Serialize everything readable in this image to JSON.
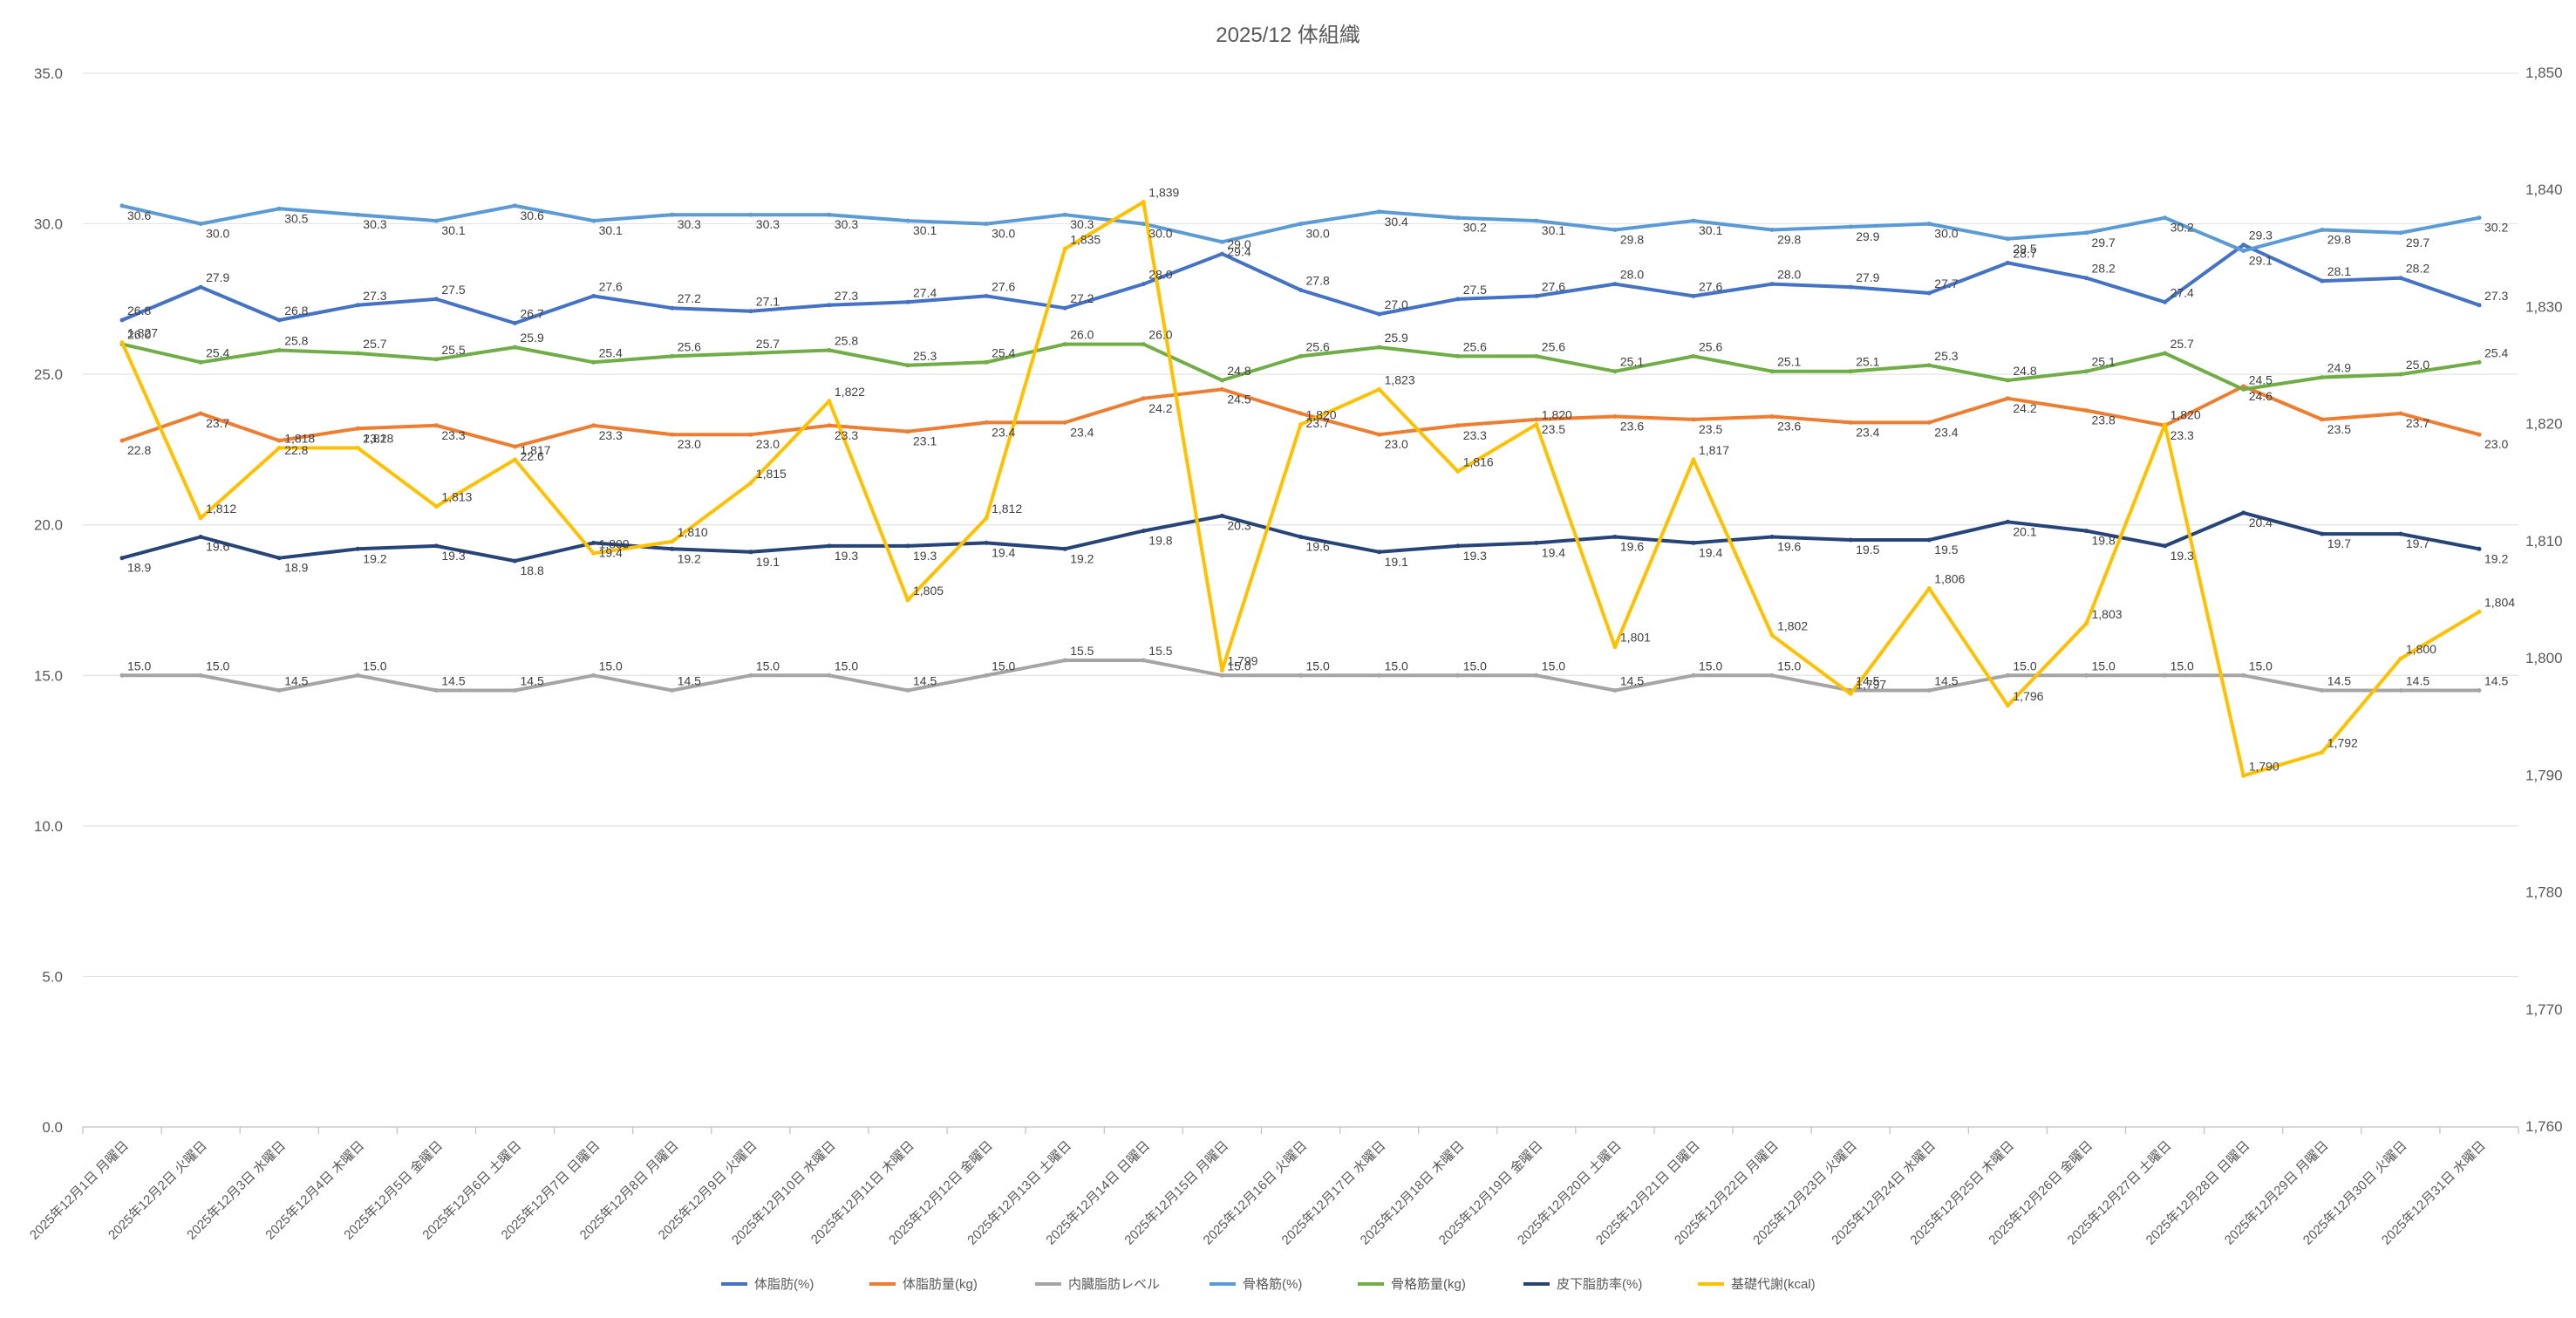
{
  "chart_data": {
    "type": "line",
    "title": "2025/12 体組織",
    "categories": [
      "2025年12月1日 月曜日",
      "2025年12月2日 火曜日",
      "2025年12月3日 水曜日",
      "2025年12月4日 木曜日",
      "2025年12月5日 金曜日",
      "2025年12月6日 土曜日",
      "2025年12月7日 日曜日",
      "2025年12月8日 月曜日",
      "2025年12月9日 火曜日",
      "2025年12月10日 水曜日",
      "2025年12月11日 木曜日",
      "2025年12月12日 金曜日",
      "2025年12月13日 土曜日",
      "2025年12月14日 日曜日",
      "2025年12月15日 月曜日",
      "2025年12月16日 火曜日",
      "2025年12月17日 水曜日",
      "2025年12月18日 木曜日",
      "2025年12月19日 金曜日",
      "2025年12月20日 土曜日",
      "2025年12月21日 日曜日",
      "2025年12月22日 月曜日",
      "2025年12月23日 火曜日",
      "2025年12月24日 水曜日",
      "2025年12月25日 木曜日",
      "2025年12月26日 金曜日",
      "2025年12月27日 土曜日",
      "2025年12月28日 日曜日",
      "2025年12月29日 月曜日",
      "2025年12月30日 火曜日",
      "2025年12月31日 水曜日"
    ],
    "y_left": {
      "min": 0,
      "max": 35,
      "step": 5,
      "tick_labels": [
        "0.0",
        "5.0",
        "10.0",
        "15.0",
        "20.0",
        "25.0",
        "30.0",
        "35.0"
      ]
    },
    "y_right": {
      "min": 1760,
      "max": 1850,
      "step": 10,
      "tick_labels": [
        "1,760",
        "1,770",
        "1,780",
        "1,790",
        "1,800",
        "1,810",
        "1,820",
        "1,830",
        "1,840",
        "1,850"
      ]
    },
    "grid": true,
    "legend_position": "bottom",
    "series": [
      {
        "name": "体脂肪(%)",
        "color": "#4472C4",
        "axis": "left",
        "values": [
          26.8,
          27.9,
          26.8,
          27.3,
          27.5,
          26.7,
          27.6,
          27.2,
          27.1,
          27.3,
          27.4,
          27.6,
          27.2,
          28.0,
          29.0,
          27.8,
          27.0,
          27.5,
          27.6,
          28.0,
          27.6,
          28.0,
          27.9,
          27.7,
          28.7,
          28.2,
          27.4,
          29.3,
          28.1,
          28.2,
          27.3
        ],
        "labels": [
          "26.8",
          "27.9",
          "26.8",
          "27.3",
          "27.5",
          "26.7",
          "27.6",
          "27.2",
          "27.1",
          "27.3",
          "27.4",
          "27.6",
          "27.2",
          "28.0",
          "29.0",
          "27.8",
          "27.0",
          "27.5",
          "27.6",
          "28.0",
          "27.6",
          "28.0",
          "27.9",
          "27.7",
          "28.7",
          "28.2",
          "27.4",
          "29.3",
          "28.1",
          "28.2",
          "27.3"
        ]
      },
      {
        "name": "体脂肪量(kg)",
        "color": "#ED7D31",
        "axis": "left",
        "values": [
          22.8,
          23.7,
          22.8,
          23.2,
          23.3,
          22.6,
          23.3,
          23.0,
          23.0,
          23.3,
          23.1,
          23.4,
          23.4,
          24.2,
          24.5,
          23.7,
          23.0,
          23.3,
          23.5,
          23.6,
          23.5,
          23.6,
          23.4,
          23.4,
          24.2,
          23.8,
          23.3,
          24.6,
          23.5,
          23.7,
          23.0
        ],
        "labels": [
          "22.8",
          "23.7",
          "22.8",
          "23.2",
          "23.3",
          "22.6",
          "23.3",
          "23.0",
          "23.0",
          "23.3",
          "23.1",
          "23.4",
          "23.4",
          "24.2",
          "24.5",
          "23.7",
          "23.0",
          "23.3",
          "23.5",
          "23.6",
          "23.5",
          "23.6",
          "23.4",
          "23.4",
          "24.2",
          "23.8",
          "23.3",
          "24.6",
          "23.5",
          "23.7",
          "23.0"
        ]
      },
      {
        "name": "内臓脂肪レベル",
        "color": "#A5A5A5",
        "axis": "left",
        "values": [
          15.0,
          15.0,
          14.5,
          15.0,
          14.5,
          14.5,
          15.0,
          14.5,
          15.0,
          15.0,
          14.5,
          15.0,
          15.5,
          15.5,
          15.0,
          15.0,
          15.0,
          15.0,
          15.0,
          14.5,
          15.0,
          15.0,
          14.5,
          14.5,
          15.0,
          15.0,
          15.0,
          15.0,
          14.5,
          14.5,
          14.5
        ],
        "labels": [
          "15.0",
          "15.0",
          "14.5",
          "15.0",
          "14.5",
          "14.5",
          "15.0",
          "14.5",
          "15.0",
          "15.0",
          "14.5",
          "15.0",
          "15.5",
          "15.5",
          "15.0",
          "15.0",
          "15.0",
          "15.0",
          "15.0",
          "14.5",
          "15.0",
          "15.0",
          "14.5",
          "14.5",
          "15.0",
          "15.0",
          "15.0",
          "15.0",
          "14.5",
          "14.5",
          "14.5"
        ]
      },
      {
        "name": "骨格筋(%)",
        "color": "#5B9BD5",
        "axis": "left",
        "values": [
          30.6,
          30.0,
          30.5,
          30.3,
          30.1,
          30.6,
          30.1,
          30.3,
          30.3,
          30.3,
          30.1,
          30.0,
          30.3,
          30.0,
          29.4,
          30.0,
          30.4,
          30.2,
          30.1,
          29.8,
          30.1,
          29.8,
          29.9,
          30.0,
          29.5,
          29.7,
          30.2,
          29.1,
          29.8,
          29.7,
          30.2
        ],
        "labels": [
          "30.6",
          "30.0",
          "30.5",
          "30.3",
          "30.1",
          "30.6",
          "30.1",
          "30.3",
          "30.3",
          "30.3",
          "30.1",
          "30.0",
          "30.3",
          "30.0",
          "29.4",
          "30.0",
          "30.4",
          "30.2",
          "30.1",
          "29.8",
          "30.1",
          "29.8",
          "29.9",
          "30.0",
          "29.5",
          "29.7",
          "30.2",
          "29.1",
          "29.8",
          "29.7",
          "30.2"
        ]
      },
      {
        "name": "骨格筋量(kg)",
        "color": "#70AD47",
        "axis": "left",
        "values": [
          26.0,
          25.4,
          25.8,
          25.7,
          25.5,
          25.9,
          25.4,
          25.6,
          25.7,
          25.8,
          25.3,
          25.4,
          26.0,
          26.0,
          24.8,
          25.6,
          25.9,
          25.6,
          25.6,
          25.1,
          25.6,
          25.1,
          25.1,
          25.3,
          24.8,
          25.1,
          25.7,
          24.5,
          24.9,
          25.0,
          25.4
        ],
        "labels": [
          "26.0",
          "25.4",
          "25.8",
          "25.7",
          "25.5",
          "25.9",
          "25.4",
          "25.6",
          "25.7",
          "25.8",
          "25.3",
          "25.4",
          "26.0",
          "26.0",
          "24.8",
          "25.6",
          "25.9",
          "25.6",
          "25.6",
          "25.1",
          "25.6",
          "25.1",
          "25.1",
          "25.3",
          "24.8",
          "25.1",
          "25.7",
          "24.5",
          "24.9",
          "25.0",
          "25.4"
        ]
      },
      {
        "name": "皮下脂肪率(%)",
        "color": "#264478",
        "axis": "left",
        "values": [
          18.9,
          19.6,
          18.9,
          19.2,
          19.3,
          18.8,
          19.4,
          19.2,
          19.1,
          19.3,
          19.3,
          19.4,
          19.2,
          19.8,
          20.3,
          19.6,
          19.1,
          19.3,
          19.4,
          19.6,
          19.4,
          19.6,
          19.5,
          19.5,
          20.1,
          19.8,
          19.3,
          20.4,
          19.7,
          19.7,
          19.2
        ],
        "labels": [
          "18.9",
          "19.6",
          "18.9",
          "19.2",
          "19.3",
          "18.8",
          "19.4",
          "19.2",
          "19.1",
          "19.3",
          "19.3",
          "19.4",
          "19.2",
          "19.8",
          "20.3",
          "19.6",
          "19.1",
          "19.3",
          "19.4",
          "19.6",
          "19.4",
          "19.6",
          "19.5",
          "19.5",
          "20.1",
          "19.8",
          "19.3",
          "20.4",
          "19.7",
          "19.7",
          "19.2"
        ]
      },
      {
        "name": "基礎代謝(kcal)",
        "color": "#FFC000",
        "axis": "right",
        "values": [
          1827,
          1812,
          1818,
          1818,
          1813,
          1817,
          1809,
          1810,
          1815,
          1822,
          1805,
          1812,
          1835,
          1839,
          1799,
          1820,
          1823,
          1816,
          1820,
          1801,
          1817,
          1802,
          1797,
          1806,
          1796,
          1803,
          1820,
          1790,
          1792,
          1800,
          1804
        ],
        "labels": [
          "1,827",
          "1,812",
          "1,818",
          "1,818",
          "1,813",
          "1,817",
          "1,809",
          "1,810",
          "1,815",
          "1,822",
          "1,805",
          "1,812",
          "1,835",
          "1,839",
          "1,799",
          "1,820",
          "1,823",
          "1,816",
          "1,820",
          "1,801",
          "1,817",
          "1,802",
          "1,797",
          "1,806",
          "1,796",
          "1,803",
          "1,820",
          "1,790",
          "1,792",
          "1,800",
          "1,804"
        ]
      }
    ]
  }
}
